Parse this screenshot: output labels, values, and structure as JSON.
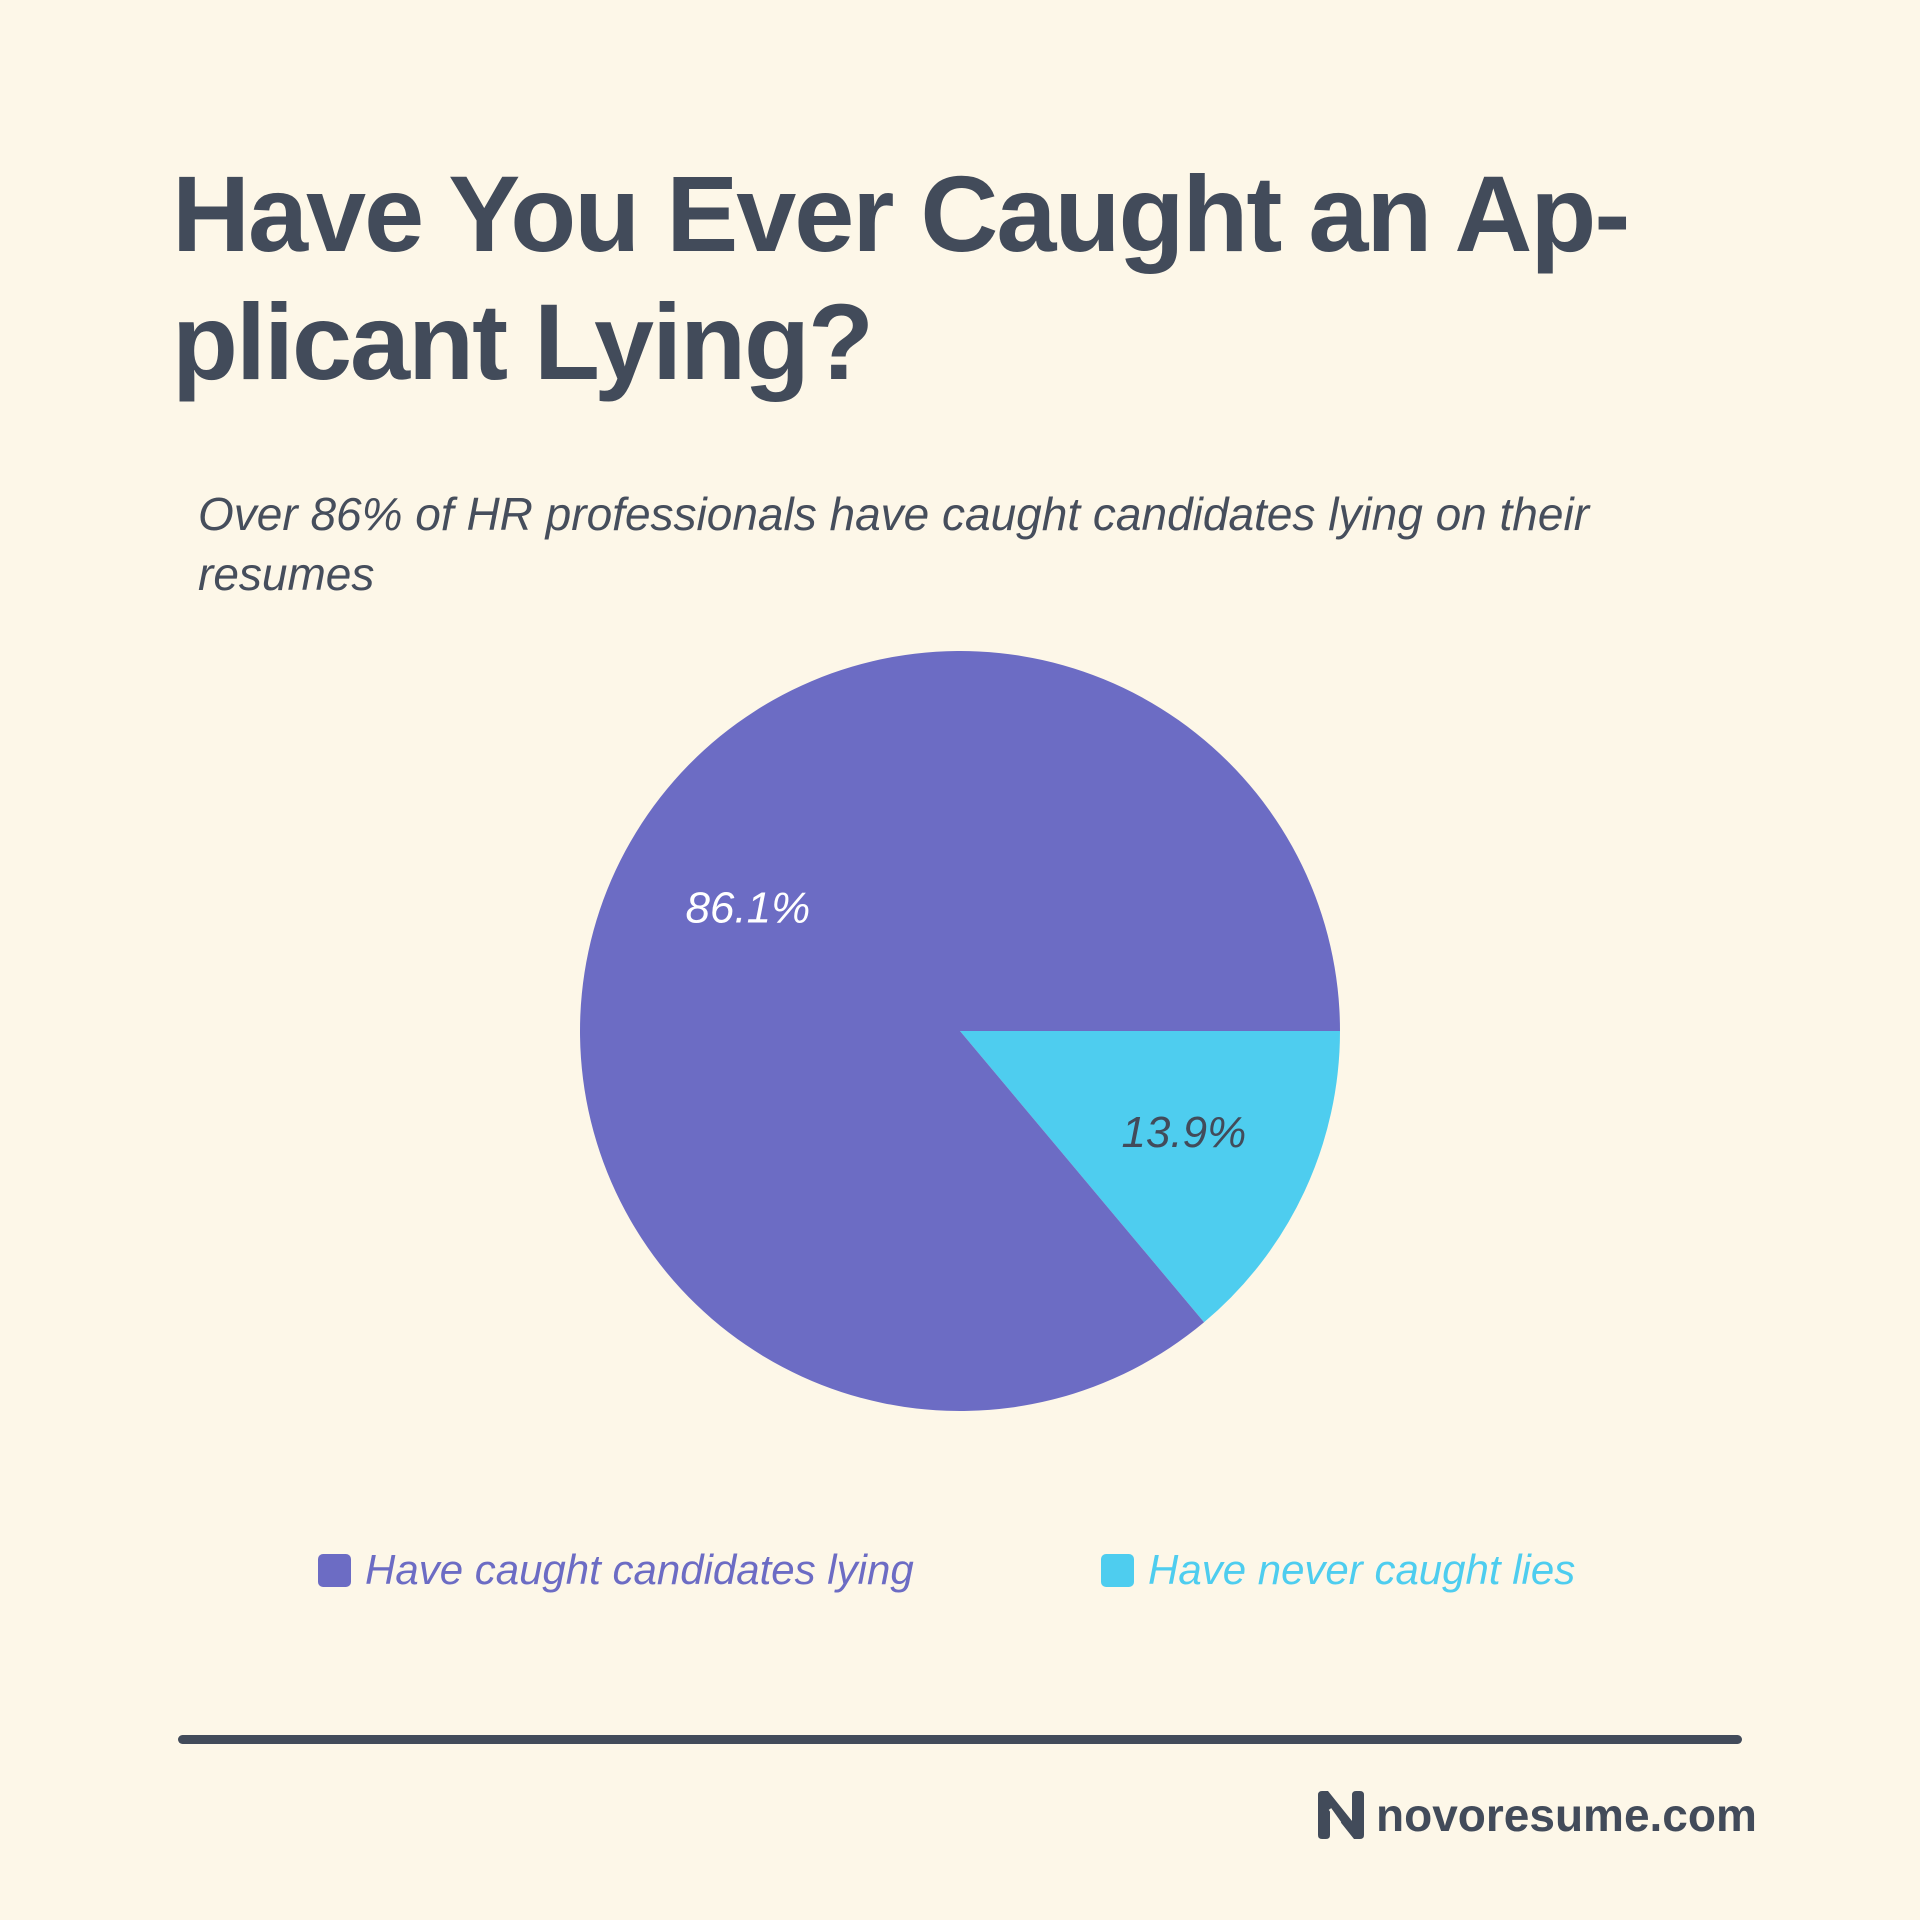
{
  "title": "Have You Ever Caught an Ap-plicant Lying?",
  "title_lines": [
    "Have You Ever Caught an Ap-",
    "plicant Lying?"
  ],
  "subtitle": "Over 86% of HR professionals have caught candidates lying on their resumes",
  "chart_data": {
    "type": "pie",
    "title": "Have You Ever Caught an Applicant Lying?",
    "categories": [
      "Have caught candidates lying",
      "Have never caught lies"
    ],
    "values": [
      86.1,
      13.9
    ],
    "labels": [
      "86.1%",
      "13.9%"
    ],
    "colors": [
      "#6c6cc4",
      "#4ecdef"
    ],
    "legend": "bottom"
  },
  "brand": {
    "name": "novoresume.com",
    "color": "#424b5a"
  },
  "background": "#fdf7e8"
}
